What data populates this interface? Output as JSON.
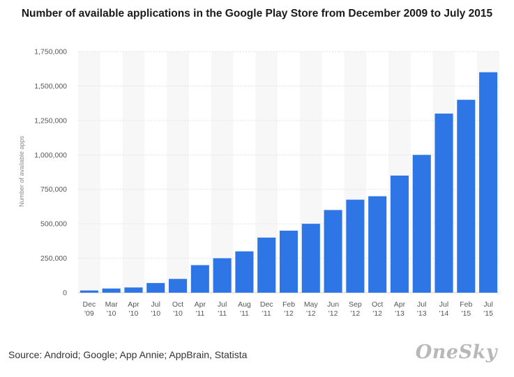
{
  "title": "Number of available applications in the Google Play Store from December 2009 to July 2015",
  "source": "Source: Android; Google; App Annie; AppBrain, Statista",
  "logo": "OneSky",
  "chart_data": {
    "type": "bar",
    "title": "Number of available applications in the Google Play Store from December 2009 to July 2015",
    "xlabel": "",
    "ylabel": "Number of available apps",
    "ylim": [
      0,
      1750000
    ],
    "yticks": [
      {
        "value": 0,
        "label": "0"
      },
      {
        "value": 250000,
        "label": "250,000"
      },
      {
        "value": 500000,
        "label": "500,000"
      },
      {
        "value": 750000,
        "label": "750,000"
      },
      {
        "value": 1000000,
        "label": "1,000,000"
      },
      {
        "value": 1250000,
        "label": "1,250,000"
      },
      {
        "value": 1500000,
        "label": "1,500,000"
      },
      {
        "value": 1750000,
        "label": "1,750,000"
      }
    ],
    "grid": true,
    "bar_color": "#2e75e6",
    "categories": [
      [
        "Dec",
        "'09"
      ],
      [
        "Mar",
        "'10"
      ],
      [
        "Apr",
        "'10"
      ],
      [
        "Jul",
        "'10"
      ],
      [
        "Oct",
        "'10"
      ],
      [
        "Apr",
        "'11"
      ],
      [
        "Jul",
        "'11"
      ],
      [
        "Aug",
        "'11"
      ],
      [
        "Dec",
        "'11"
      ],
      [
        "Feb",
        "'12"
      ],
      [
        "May",
        "'12"
      ],
      [
        "Jun",
        "'12"
      ],
      [
        "Sep",
        "'12"
      ],
      [
        "Oct",
        "'12"
      ],
      [
        "Apr",
        "'13"
      ],
      [
        "Jul",
        "'13"
      ],
      [
        "Jul",
        "'14"
      ],
      [
        "Feb",
        "'15"
      ],
      [
        "Jul",
        "'15"
      ]
    ],
    "values": [
      16000,
      30000,
      38000,
      70000,
      100000,
      200000,
      250000,
      300000,
      400000,
      450000,
      500000,
      600000,
      675000,
      700000,
      850000,
      1000000,
      1300000,
      1400000,
      1600000
    ]
  }
}
